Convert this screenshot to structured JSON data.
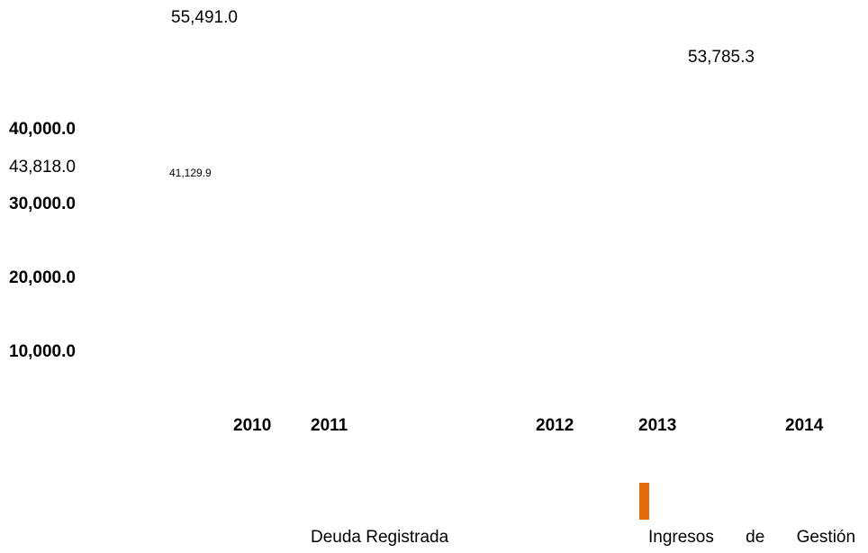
{
  "value_labels": [
    "55,491.0",
    "53,785.3",
    "43,818.0",
    "41,129.9"
  ],
  "axis_labels": [
    "40,000.0",
    "30,000.0",
    "20,000.0",
    "10,000.0"
  ],
  "years": [
    "2010",
    "2011",
    "2012",
    "2013",
    "2014"
  ],
  "legend": [
    "Deuda Registrada",
    "Ingresos de Gestión"
  ]
}
